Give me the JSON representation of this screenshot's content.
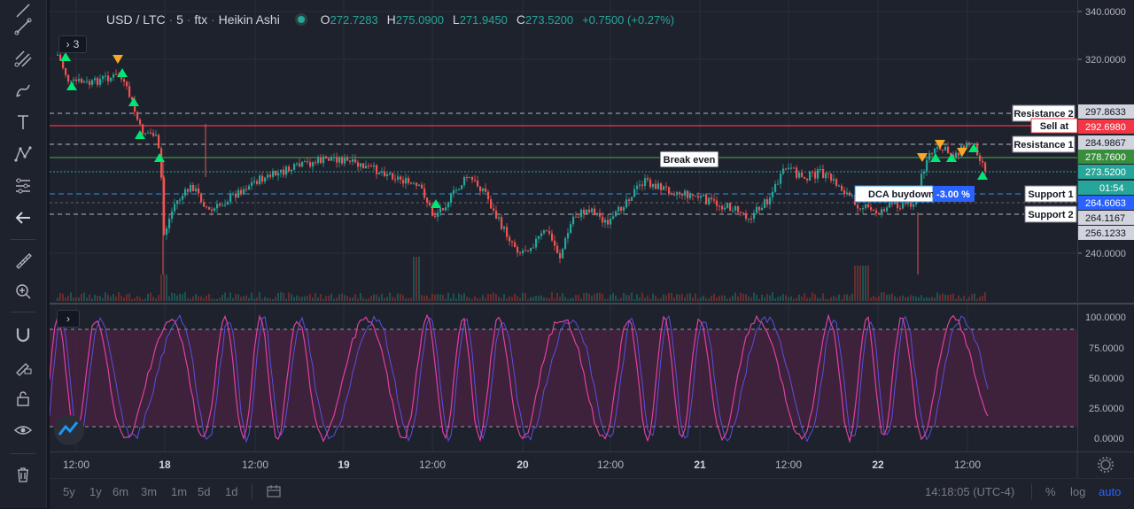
{
  "legend": {
    "symbol": "USD / LTC",
    "interval": "5",
    "exchange": "ftx",
    "chart_style": "Heikin Ashi",
    "open_label": "O",
    "open": "272.7283",
    "high_label": "H",
    "high": "275.0900",
    "low_label": "L",
    "low": "271.9450",
    "close_label": "C",
    "close": "273.5200",
    "change": "+0.7500 (+0.27%)",
    "indicators_count": "3"
  },
  "price_axis": {
    "ticks": [
      "340.0000",
      "320.0000",
      "240.0000"
    ],
    "badges": {
      "resistance2": "297.8633",
      "sell_at": "292.6980",
      "resistance1": "284.9867",
      "green": "278.7600",
      "last": "273.5200",
      "countdown": "01:54",
      "buydown": "264.6063",
      "support1": "264.1167",
      "support2": "256.1233"
    }
  },
  "osc_axis": {
    "ticks": [
      "100.0000",
      "75.0000",
      "50.0000",
      "25.0000",
      "0.0000"
    ]
  },
  "annotations": {
    "resistance2": "Resistance 2",
    "sell_at": "Sell at",
    "resistance1": "Resistance 1",
    "break_even": "Break even",
    "dca_buydown": "DCA buydown",
    "dca_pct": "-3.00 %",
    "support1": "Support 1",
    "support2": "Support 2"
  },
  "time_axis": {
    "labels": [
      "12:00",
      "18",
      "12:00",
      "19",
      "12:00",
      "20",
      "12:00",
      "21",
      "12:00",
      "22",
      "12:00"
    ]
  },
  "bottom_bar": {
    "timeframes": [
      "5y",
      "1y",
      "6m",
      "3m",
      "1m",
      "5d",
      "1d"
    ],
    "clock": "14:18:05 (UTC-4)",
    "percent": "%",
    "log": "log",
    "auto": "auto"
  },
  "colors": {
    "background": "#1e222d",
    "candle_up": "#26a69a",
    "candle_down": "#ef5350",
    "sell_line": "#f23645",
    "osc_line": "#e040a0",
    "auto_accent": "#2962ff"
  },
  "icons": [
    "cursor-icon",
    "trend-line-icon",
    "pitchfork-icon",
    "brush-icon",
    "text-icon",
    "pattern-icon",
    "fib-icon",
    "arrow-left-icon",
    "ruler-icon",
    "zoom-icon",
    "magnet-icon",
    "lock-pencil-icon",
    "lock-icon",
    "eye-icon",
    "trash-icon"
  ]
}
